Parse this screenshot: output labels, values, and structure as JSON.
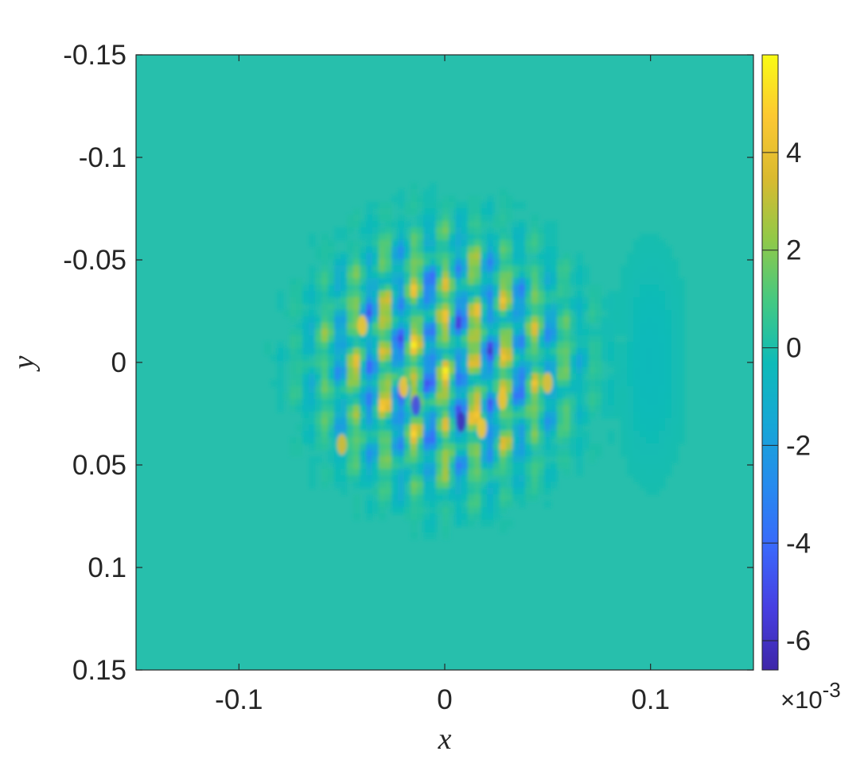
{
  "chart_data": {
    "type": "heatmap",
    "xlabel": "x",
    "ylabel": "y",
    "xlim": [
      -0.15,
      0.15
    ],
    "ylim": [
      -0.15,
      0.15
    ],
    "y_axis_direction": "reversed",
    "x_ticks": [
      "-0.1",
      "0",
      "0.1"
    ],
    "x_tick_values": [
      -0.1,
      0,
      0.1
    ],
    "y_ticks": [
      "-0.15",
      "-0.1",
      "-0.05",
      "0",
      "0.05",
      "0.1",
      "0.15"
    ],
    "y_tick_values": [
      -0.15,
      -0.1,
      -0.05,
      0,
      0.05,
      0.1,
      0.15
    ],
    "colorbar": {
      "ticks": [
        "4",
        "2",
        "0",
        "-2",
        "-4",
        "-6"
      ],
      "tick_values": [
        4,
        2,
        0,
        -2,
        -4,
        -6
      ],
      "range": [
        -6.6,
        6.0
      ],
      "exponent_prefix": "×10",
      "exponent_value": "-3",
      "colormap": "parula"
    },
    "field_description": "Oscillatory field concentrated roughly within |x|,|y| < 0.08, zero elsewhere",
    "background_color": "#27bfac",
    "grid": false
  }
}
